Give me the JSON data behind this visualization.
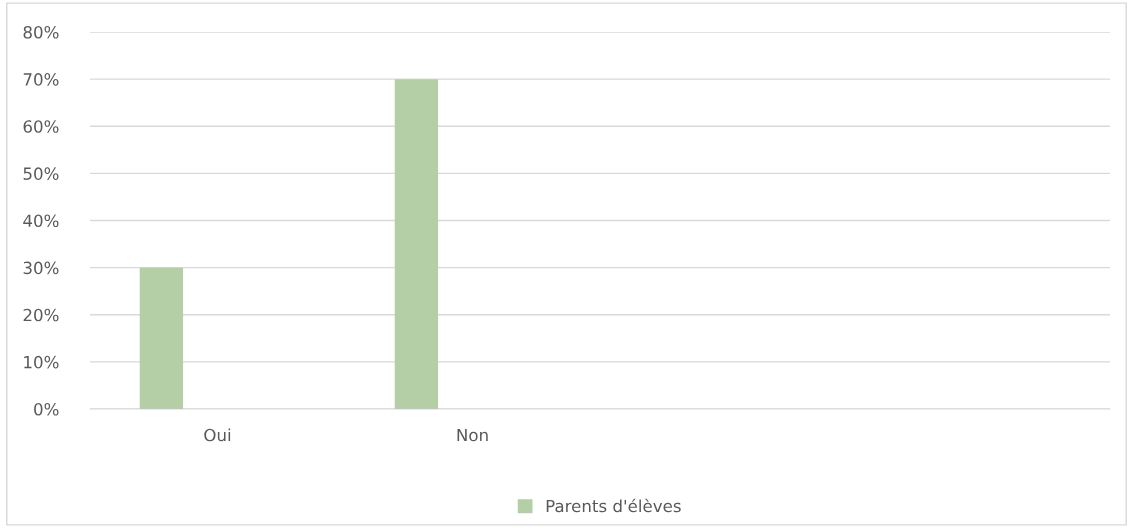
{
  "chart_data": {
    "type": "bar",
    "categories": [
      "Oui",
      "Non",
      null,
      null
    ],
    "series": [
      {
        "name": "Parents d'élèves",
        "color": "#b4cea6",
        "values": [
          30,
          70,
          null,
          null
        ]
      }
    ],
    "ylim": [
      0,
      80
    ],
    "yticks": [
      {
        "value": 0,
        "label": "0%"
      },
      {
        "value": 10,
        "label": "10%"
      },
      {
        "value": 20,
        "label": "20%"
      },
      {
        "value": 30,
        "label": "30%"
      },
      {
        "value": 40,
        "label": "40%"
      },
      {
        "value": 50,
        "label": "50%"
      },
      {
        "value": 60,
        "label": "60%"
      },
      {
        "value": 70,
        "label": "70%"
      },
      {
        "value": 80,
        "label": "80%"
      }
    ],
    "grid": "y",
    "legend": "bottom"
  }
}
